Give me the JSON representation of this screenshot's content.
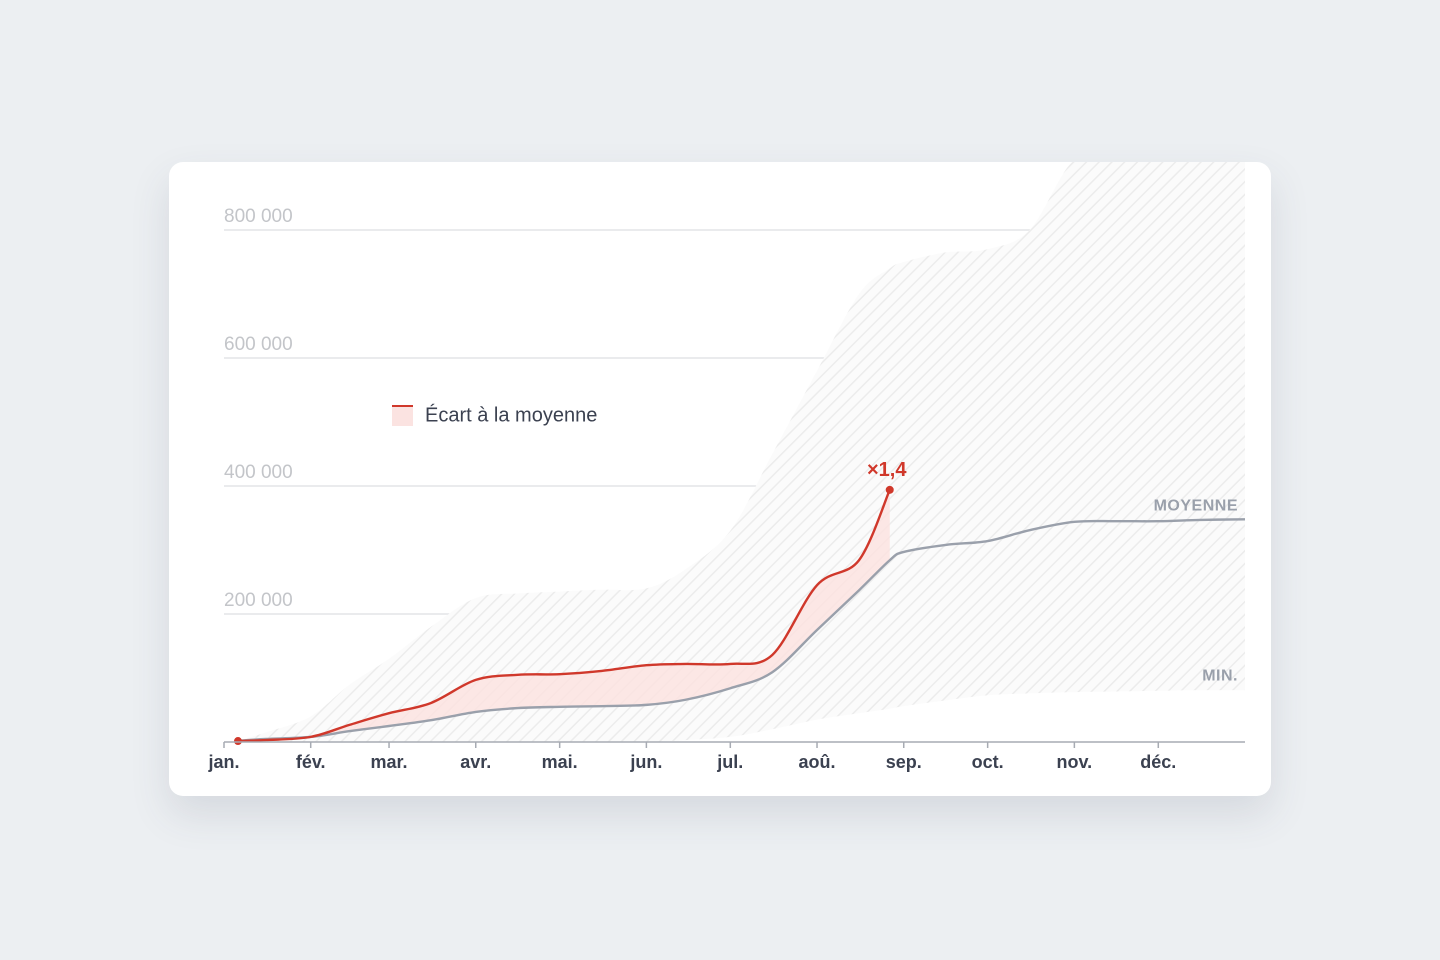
{
  "chart_data": {
    "type": "line",
    "legend": "Écart à la moyenne",
    "annotation": "×1,4",
    "x": [
      5,
      15,
      31,
      45,
      59,
      74,
      90,
      105,
      120,
      135,
      151,
      165,
      181,
      196,
      212,
      227,
      238,
      243,
      258,
      273,
      288,
      304,
      319,
      334,
      349,
      365
    ],
    "xlim": [
      0,
      365
    ],
    "xticks": [
      {
        "value": 0,
        "label": "jan."
      },
      {
        "value": 31,
        "label": "fév."
      },
      {
        "value": 59,
        "label": "mar."
      },
      {
        "value": 90,
        "label": "avr."
      },
      {
        "value": 120,
        "label": "mai."
      },
      {
        "value": 151,
        "label": "jun."
      },
      {
        "value": 181,
        "label": "jul."
      },
      {
        "value": 212,
        "label": "aoû."
      },
      {
        "value": 243,
        "label": "sep."
      },
      {
        "value": 273,
        "label": "oct."
      },
      {
        "value": 304,
        "label": "nov."
      },
      {
        "value": 334,
        "label": "déc."
      }
    ],
    "ylim": [
      0,
      900000
    ],
    "yticks": [
      {
        "value": 200000,
        "label": "200 000"
      },
      {
        "value": 400000,
        "label": "400 000"
      },
      {
        "value": 600000,
        "label": "600 000"
      },
      {
        "value": 800000,
        "label": "800 000"
      }
    ],
    "grid": true,
    "series": [
      {
        "name": "MOYENNE",
        "color": "#9aa0ab",
        "values": [
          2000,
          4700,
          8000,
          17000,
          25000,
          34000,
          47000,
          53000,
          55000,
          56000,
          58000,
          66000,
          84000,
          109000,
          175000,
          237000,
          284000,
          297000,
          308000,
          314000,
          331000,
          344000,
          345000,
          345000,
          347000,
          348000
        ]
      },
      {
        "color": "#d0382b",
        "values": [
          1500,
          3000,
          8000,
          27000,
          45000,
          61000,
          97000,
          105000,
          106000,
          111000,
          120000,
          122000,
          122000,
          136000,
          245000,
          284000,
          394000,
          null,
          null,
          null,
          null,
          null,
          null,
          null,
          null,
          null
        ]
      }
    ],
    "range": {
      "lower_name": "MIN.",
      "lower": [
        0,
        0,
        0,
        0,
        0,
        0,
        0,
        0,
        0,
        0,
        0,
        3000,
        8000,
        20000,
        35000,
        45000,
        52000,
        56000,
        65000,
        73000,
        76000,
        78000,
        79000,
        80000,
        81000,
        81000
      ],
      "upper": [
        2000,
        15000,
        40000,
        90000,
        130000,
        180000,
        225000,
        232000,
        235000,
        238000,
        240000,
        270000,
        330000,
        450000,
        580000,
        700000,
        740000,
        750000,
        765000,
        770000,
        800000,
        910000,
        910000,
        910000,
        910000,
        910000
      ]
    }
  }
}
